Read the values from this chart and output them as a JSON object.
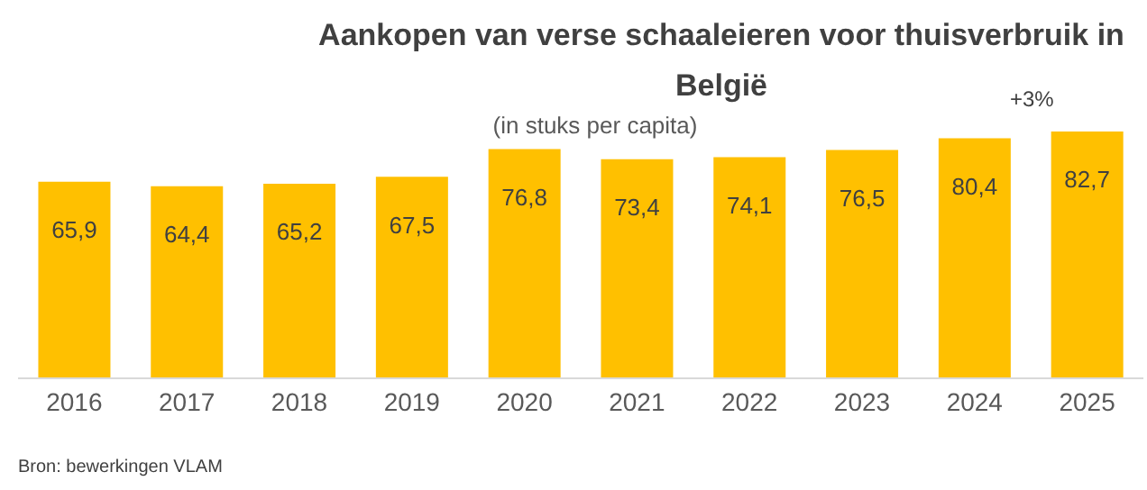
{
  "chart_data": {
    "type": "bar",
    "title": "Aankopen van verse schaaleieren voor thuisverbruik in België",
    "subtitle": "(in stuks per capita)",
    "categories": [
      "2016",
      "2017",
      "2018",
      "2019",
      "2020",
      "2021",
      "2022",
      "2023",
      "2024",
      "2025"
    ],
    "values": [
      65.9,
      64.4,
      65.2,
      67.5,
      76.8,
      73.4,
      74.1,
      76.5,
      80.4,
      82.7
    ],
    "value_labels": [
      "65,9",
      "64,4",
      "65,2",
      "67,5",
      "76,8",
      "73,4",
      "74,1",
      "76,5",
      "80,4",
      "82,7"
    ],
    "color": "#ffc000",
    "annotations": [
      "+3%",
      "Bron: bewerkingen VLAM"
    ]
  }
}
